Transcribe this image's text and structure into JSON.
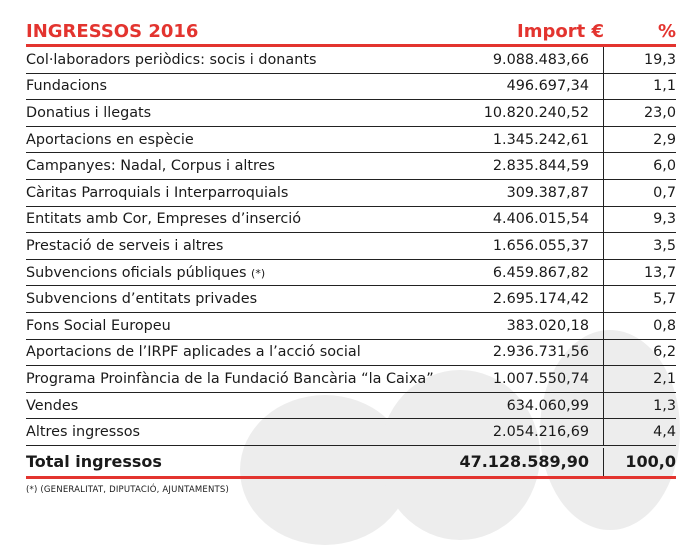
{
  "header": {
    "title": "INGRESSOS 2016",
    "amount_label": "Import €",
    "percent_label": "%"
  },
  "rows": [
    {
      "label": "Col·laboradors periòdics: socis i donants",
      "note": "",
      "amount": "9.088.483,66",
      "percent": "19,3"
    },
    {
      "label": "Fundacions",
      "note": "",
      "amount": "496.697,34",
      "percent": "1,1"
    },
    {
      "label": "Donatius i llegats",
      "note": "",
      "amount": "10.820.240,52",
      "percent": "23,0"
    },
    {
      "label": "Aportacions en espècie",
      "note": "",
      "amount": "1.345.242,61",
      "percent": "2,9"
    },
    {
      "label": "Campanyes: Nadal, Corpus i altres",
      "note": "",
      "amount": "2.835.844,59",
      "percent": "6,0"
    },
    {
      "label": "Càritas Parroquials i Interparroquials",
      "note": "",
      "amount": "309.387,87",
      "percent": "0,7"
    },
    {
      "label": "Entitats amb Cor, Empreses d’inserció",
      "note": "",
      "amount": "4.406.015,54",
      "percent": "9,3"
    },
    {
      "label": "Prestació de serveis i altres",
      "note": "",
      "amount": "1.656.055,37",
      "percent": "3,5"
    },
    {
      "label": "Subvencions oficials públiques",
      "note": "(*)",
      "amount": "6.459.867,82",
      "percent": "13,7"
    },
    {
      "label": "Subvencions d’entitats privades",
      "note": "",
      "amount": "2.695.174,42",
      "percent": "5,7"
    },
    {
      "label": "Fons Social Europeu",
      "note": "",
      "amount": "383.020,18",
      "percent": "0,8"
    },
    {
      "label": "Aportacions de l’IRPF aplicades a l’acció social",
      "note": "",
      "amount": "2.936.731,56",
      "percent": "6,2"
    },
    {
      "label": "Programa Proinfància de la Fundació Bancària “la Caixa”",
      "note": "",
      "amount": "1.007.550,74",
      "percent": "2,1"
    },
    {
      "label": "Vendes",
      "note": "",
      "amount": "634.060,99",
      "percent": "1,3"
    },
    {
      "label": "Altres ingressos",
      "note": "",
      "amount": "2.054.216,69",
      "percent": "4,4"
    }
  ],
  "total": {
    "label": "Total ingressos",
    "amount": "47.128.589,90",
    "percent": "100,0"
  },
  "footnote": "(*) (GENERALITAT, DIPUTACIÓ, AJUNTAMENTS)",
  "colors": {
    "accent": "#e3342f",
    "text": "#1a1a1a",
    "watermark": "#ededed"
  }
}
